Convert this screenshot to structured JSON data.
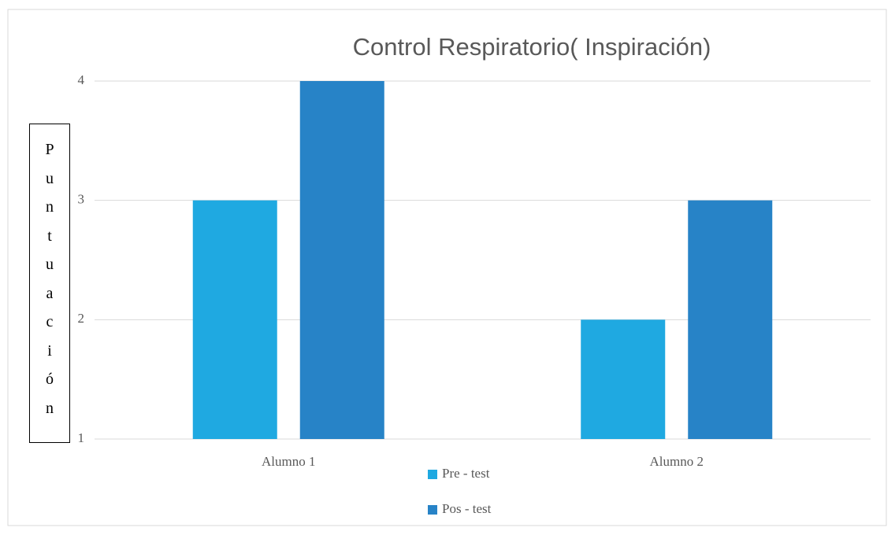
{
  "chart_data": {
    "type": "bar",
    "title": "Control Respiratorio( Inspiración)",
    "y_label": "Puntuación",
    "categories": [
      "Alumno 1",
      "Alumno 2"
    ],
    "series": [
      {
        "name": "Pre - test",
        "color": "#1fa9e1",
        "values": [
          3,
          2
        ]
      },
      {
        "name": "Pos - test",
        "color": "#2783c7",
        "values": [
          4,
          3
        ]
      }
    ],
    "ylim": [
      1,
      4
    ],
    "yticks": [
      1,
      2,
      3,
      4
    ],
    "grid": true,
    "legend": "bottom"
  }
}
